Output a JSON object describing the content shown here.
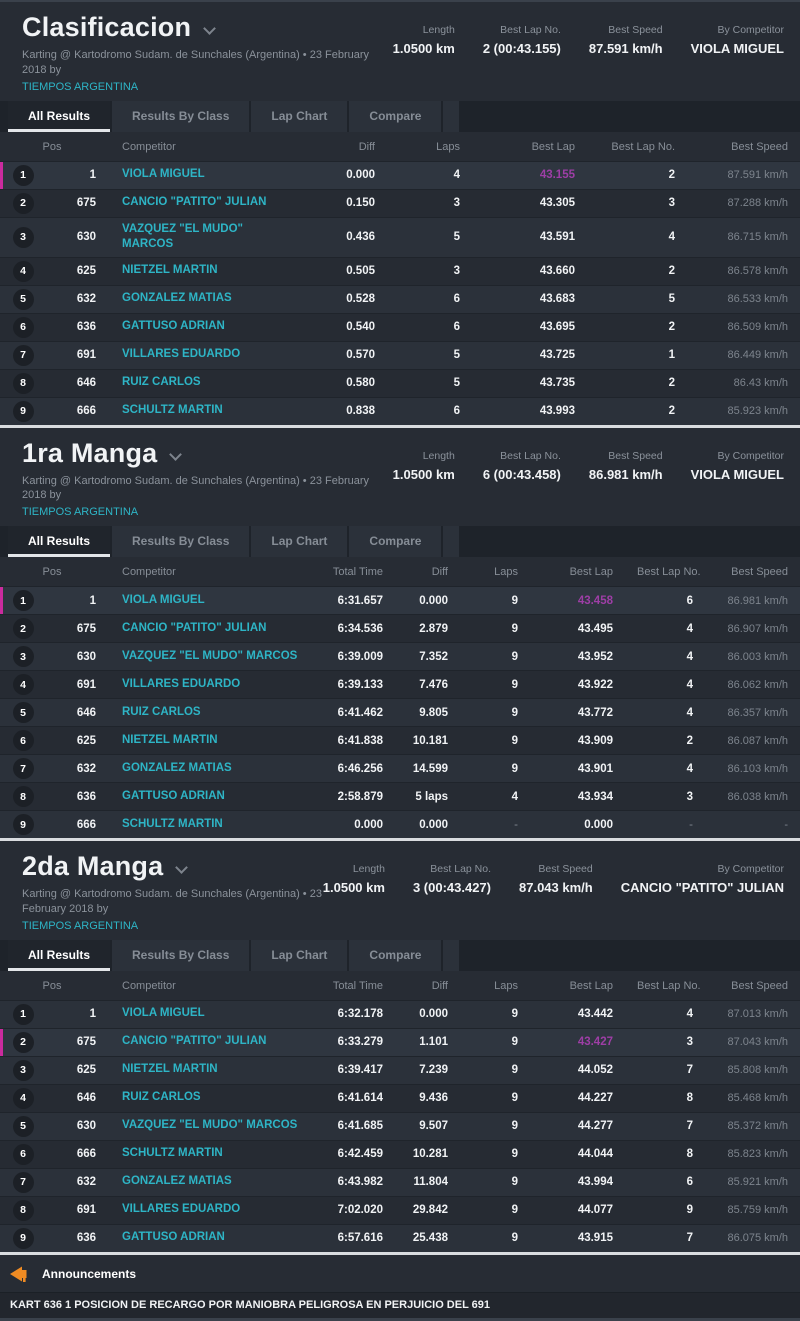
{
  "colors": {
    "accent_cyan": "#2eb5c6",
    "fastest_lap_magenta": "#9e3ea6",
    "highlight_bar_magenta": "#cb2b9e",
    "announcement_orange": "#ef8b23"
  },
  "tabs": [
    "All Results",
    "Results By Class",
    "Lap Chart",
    "Compare"
  ],
  "active_tab": "All Results",
  "sections": [
    {
      "title": "Clasificacion",
      "subtitle": "Karting @ Kartodromo Sudam. de Sunchales (Argentina) • 23 February 2018 by",
      "organizer": "TIEMPOS ARGENTINA",
      "stats": [
        {
          "label": "Length",
          "value": "1.0500 km"
        },
        {
          "label": "Best Lap No.",
          "value": "2 (00:43.155)"
        },
        {
          "label": "Best Speed",
          "value": "87.591 km/h"
        },
        {
          "label": "By Competitor",
          "value": "VIOLA MIGUEL"
        }
      ],
      "has_total_time": false,
      "columns": [
        "Pos",
        "Competitor",
        "Diff",
        "Laps",
        "Best Lap",
        "Best Lap No.",
        "Best Speed"
      ],
      "rows": [
        {
          "pos": "1",
          "kart": "1",
          "name": "VIOLA MIGUEL",
          "diff": "0.000",
          "laps": "4",
          "best_lap": "43.155",
          "best_lap_no": "2",
          "best_speed": "87.591 km/h",
          "highlight": true,
          "fastest": true
        },
        {
          "pos": "2",
          "kart": "675",
          "name": "CANCIO \"PATITO\" JULIAN",
          "diff": "0.150",
          "laps": "3",
          "best_lap": "43.305",
          "best_lap_no": "3",
          "best_speed": "87.288 km/h"
        },
        {
          "pos": "3",
          "kart": "630",
          "name": "VAZQUEZ \"EL MUDO\"",
          "name_line2": "MARCOS",
          "diff": "0.436",
          "laps": "5",
          "best_lap": "43.591",
          "best_lap_no": "4",
          "best_speed": "86.715 km/h"
        },
        {
          "pos": "4",
          "kart": "625",
          "name": "NIETZEL MARTIN",
          "diff": "0.505",
          "laps": "3",
          "best_lap": "43.660",
          "best_lap_no": "2",
          "best_speed": "86.578 km/h"
        },
        {
          "pos": "5",
          "kart": "632",
          "name": "GONZALEZ MATIAS",
          "diff": "0.528",
          "laps": "6",
          "best_lap": "43.683",
          "best_lap_no": "5",
          "best_speed": "86.533 km/h"
        },
        {
          "pos": "6",
          "kart": "636",
          "name": "GATTUSO ADRIAN",
          "diff": "0.540",
          "laps": "6",
          "best_lap": "43.695",
          "best_lap_no": "2",
          "best_speed": "86.509 km/h"
        },
        {
          "pos": "7",
          "kart": "691",
          "name": "VILLARES EDUARDO",
          "diff": "0.570",
          "laps": "5",
          "best_lap": "43.725",
          "best_lap_no": "1",
          "best_speed": "86.449 km/h"
        },
        {
          "pos": "8",
          "kart": "646",
          "name": "RUIZ CARLOS",
          "diff": "0.580",
          "laps": "5",
          "best_lap": "43.735",
          "best_lap_no": "2",
          "best_speed": "86.43 km/h"
        },
        {
          "pos": "9",
          "kart": "666",
          "name": "SCHULTZ MARTIN",
          "diff": "0.838",
          "laps": "6",
          "best_lap": "43.993",
          "best_lap_no": "2",
          "best_speed": "85.923 km/h"
        }
      ]
    },
    {
      "title": "1ra Manga",
      "subtitle": "Karting @ Kartodromo Sudam. de Sunchales (Argentina) • 23 February 2018 by",
      "organizer": "TIEMPOS ARGENTINA",
      "stats": [
        {
          "label": "Length",
          "value": "1.0500 km"
        },
        {
          "label": "Best Lap No.",
          "value": "6 (00:43.458)"
        },
        {
          "label": "Best Speed",
          "value": "86.981 km/h"
        },
        {
          "label": "By Competitor",
          "value": "VIOLA MIGUEL"
        }
      ],
      "has_total_time": true,
      "columns": [
        "Pos",
        "Competitor",
        "Total Time",
        "Diff",
        "Laps",
        "Best Lap",
        "Best Lap No.",
        "Best Speed"
      ],
      "rows": [
        {
          "pos": "1",
          "kart": "1",
          "name": "VIOLA MIGUEL",
          "total_time": "6:31.657",
          "diff": "0.000",
          "laps": "9",
          "best_lap": "43.458",
          "best_lap_no": "6",
          "best_speed": "86.981 km/h",
          "highlight": true,
          "fastest": true
        },
        {
          "pos": "2",
          "kart": "675",
          "name": "CANCIO \"PATITO\" JULIAN",
          "total_time": "6:34.536",
          "diff": "2.879",
          "laps": "9",
          "best_lap": "43.495",
          "best_lap_no": "4",
          "best_speed": "86.907 km/h"
        },
        {
          "pos": "3",
          "kart": "630",
          "name": "VAZQUEZ \"EL MUDO\" MARCOS",
          "total_time": "6:39.009",
          "diff": "7.352",
          "laps": "9",
          "best_lap": "43.952",
          "best_lap_no": "4",
          "best_speed": "86.003 km/h"
        },
        {
          "pos": "4",
          "kart": "691",
          "name": "VILLARES EDUARDO",
          "total_time": "6:39.133",
          "diff": "7.476",
          "laps": "9",
          "best_lap": "43.922",
          "best_lap_no": "4",
          "best_speed": "86.062 km/h"
        },
        {
          "pos": "5",
          "kart": "646",
          "name": "RUIZ CARLOS",
          "total_time": "6:41.462",
          "diff": "9.805",
          "laps": "9",
          "best_lap": "43.772",
          "best_lap_no": "4",
          "best_speed": "86.357 km/h"
        },
        {
          "pos": "6",
          "kart": "625",
          "name": "NIETZEL MARTIN",
          "total_time": "6:41.838",
          "diff": "10.181",
          "laps": "9",
          "best_lap": "43.909",
          "best_lap_no": "2",
          "best_speed": "86.087 km/h"
        },
        {
          "pos": "7",
          "kart": "632",
          "name": "GONZALEZ MATIAS",
          "total_time": "6:46.256",
          "diff": "14.599",
          "laps": "9",
          "best_lap": "43.901",
          "best_lap_no": "4",
          "best_speed": "86.103 km/h"
        },
        {
          "pos": "8",
          "kart": "636",
          "name": "GATTUSO ADRIAN",
          "total_time": "2:58.879",
          "diff": "5 laps",
          "laps": "4",
          "best_lap": "43.934",
          "best_lap_no": "3",
          "best_speed": "86.038 km/h"
        },
        {
          "pos": "9",
          "kart": "666",
          "name": "SCHULTZ MARTIN",
          "total_time": "0.000",
          "diff": "0.000",
          "laps": "-",
          "best_lap": "0.000",
          "best_lap_no": "-",
          "best_speed": "-"
        }
      ]
    },
    {
      "title": "2da Manga",
      "subtitle": "Karting @ Kartodromo Sudam. de Sunchales (Argentina) • 23 February 2018 by",
      "organizer": "TIEMPOS ARGENTINA",
      "stats": [
        {
          "label": "Length",
          "value": "1.0500 km"
        },
        {
          "label": "Best Lap No.",
          "value": "3 (00:43.427)"
        },
        {
          "label": "Best Speed",
          "value": "87.043 km/h"
        },
        {
          "label": "By Competitor",
          "value": "CANCIO \"PATITO\" JULIAN"
        }
      ],
      "has_total_time": true,
      "columns": [
        "Pos",
        "Competitor",
        "Total Time",
        "Diff",
        "Laps",
        "Best Lap",
        "Best Lap No.",
        "Best Speed"
      ],
      "rows": [
        {
          "pos": "1",
          "kart": "1",
          "name": "VIOLA MIGUEL",
          "total_time": "6:32.178",
          "diff": "0.000",
          "laps": "9",
          "best_lap": "43.442",
          "best_lap_no": "4",
          "best_speed": "87.013 km/h"
        },
        {
          "pos": "2",
          "kart": "675",
          "name": "CANCIO \"PATITO\" JULIAN",
          "total_time": "6:33.279",
          "diff": "1.101",
          "laps": "9",
          "best_lap": "43.427",
          "best_lap_no": "3",
          "best_speed": "87.043 km/h",
          "highlight": true,
          "fastest": true
        },
        {
          "pos": "3",
          "kart": "625",
          "name": "NIETZEL MARTIN",
          "total_time": "6:39.417",
          "diff": "7.239",
          "laps": "9",
          "best_lap": "44.052",
          "best_lap_no": "7",
          "best_speed": "85.808 km/h"
        },
        {
          "pos": "4",
          "kart": "646",
          "name": "RUIZ CARLOS",
          "total_time": "6:41.614",
          "diff": "9.436",
          "laps": "9",
          "best_lap": "44.227",
          "best_lap_no": "8",
          "best_speed": "85.468 km/h"
        },
        {
          "pos": "5",
          "kart": "630",
          "name": "VAZQUEZ \"EL MUDO\" MARCOS",
          "total_time": "6:41.685",
          "diff": "9.507",
          "laps": "9",
          "best_lap": "44.277",
          "best_lap_no": "7",
          "best_speed": "85.372 km/h"
        },
        {
          "pos": "6",
          "kart": "666",
          "name": "SCHULTZ MARTIN",
          "total_time": "6:42.459",
          "diff": "10.281",
          "laps": "9",
          "best_lap": "44.044",
          "best_lap_no": "8",
          "best_speed": "85.823 km/h"
        },
        {
          "pos": "7",
          "kart": "632",
          "name": "GONZALEZ MATIAS",
          "total_time": "6:43.982",
          "diff": "11.804",
          "laps": "9",
          "best_lap": "43.994",
          "best_lap_no": "6",
          "best_speed": "85.921 km/h"
        },
        {
          "pos": "8",
          "kart": "691",
          "name": "VILLARES EDUARDO",
          "total_time": "7:02.020",
          "diff": "29.842",
          "laps": "9",
          "best_lap": "44.077",
          "best_lap_no": "9",
          "best_speed": "85.759 km/h"
        },
        {
          "pos": "9",
          "kart": "636",
          "name": "GATTUSO ADRIAN",
          "total_time": "6:57.616",
          "diff": "25.438",
          "laps": "9",
          "best_lap": "43.915",
          "best_lap_no": "7",
          "best_speed": "86.075 km/h"
        }
      ]
    }
  ],
  "announcements": {
    "title": "Announcements",
    "messages": [
      "KART 636 1 POSICION DE RECARGO POR MANIOBRA PELIGROSA EN PERJUICIO DEL 691"
    ]
  }
}
